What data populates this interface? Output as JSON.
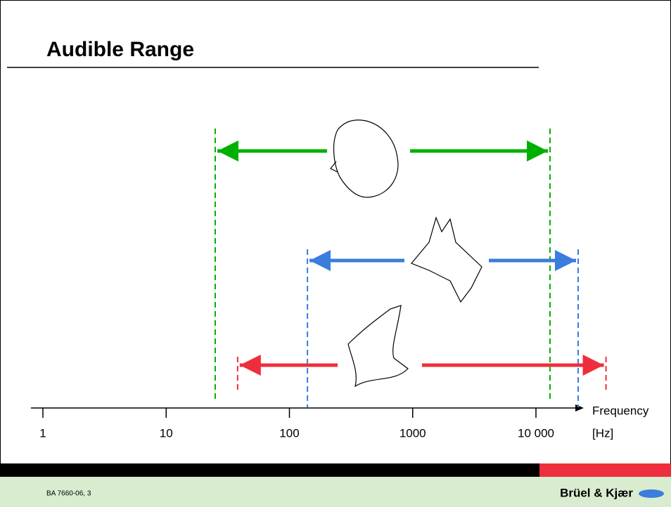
{
  "chart_data": {
    "type": "range",
    "title": "Audible Range",
    "xlabel": "Frequency",
    "xunit": "[Hz]",
    "xscale": "log",
    "xlim": [
      0.8,
      22000
    ],
    "xticks": [
      1,
      10,
      100,
      1000,
      {
        "value": 10000,
        "label": "10 000"
      }
    ],
    "series": [
      {
        "color": "#00b000",
        "values": [
          25,
          13000
        ]
      },
      {
        "color": "#3b7ddd",
        "values": [
          140,
          22000
        ]
      },
      {
        "color": "#ee2e3c",
        "values": [
          38,
          37000
        ]
      }
    ]
  },
  "footer": {
    "code": "BA 7660-06, 3",
    "logo": "Brüel & Kjær"
  }
}
